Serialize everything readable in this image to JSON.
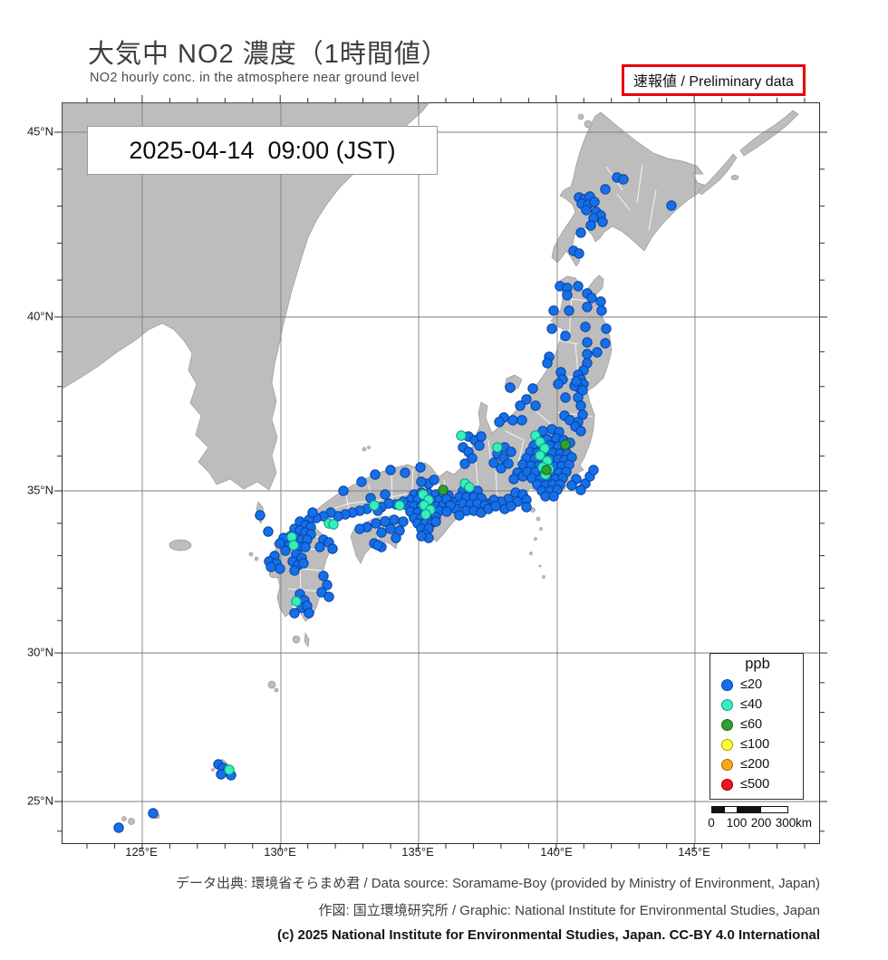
{
  "header": {
    "title": "大気中 NO2 濃度（1時間値）",
    "subtitle": "NO2 hourly conc. in the atmosphere near ground level",
    "preliminary_badge": "速報値 / Preliminary data",
    "timestamp": "2025-04-14  09:00 (JST)"
  },
  "axes": {
    "lat_labels": [
      "45°N",
      "40°N",
      "35°N",
      "30°N",
      "25°N"
    ],
    "lon_labels": [
      "125°E",
      "130°E",
      "135°E",
      "140°E",
      "145°E"
    ]
  },
  "legend": {
    "title": "ppb"
  },
  "scalebar": {
    "labels": [
      "0",
      "100",
      "200",
      "300"
    ],
    "unit": "km"
  },
  "footer": {
    "line1": "データ出典: 環境省そらまめ君 / Data source: Soramame-Boy (provided by Ministry of Environment, Japan)",
    "line2": "作図: 国立環境研究所 / Graphic: National Institute for Environmental Studies, Japan",
    "line3": "(c) 2025 National Institute for Environmental Studies, Japan. CC-BY 4.0 International"
  },
  "map": {
    "sea_color": "#ffffff",
    "land_color": "#bdbdbd",
    "grid_color": "#7d7d7d",
    "levels": [
      {
        "label": "≤20",
        "fill": "#1470e8",
        "stroke": "#0a3fa0"
      },
      {
        "label": "≤40",
        "fill": "#35efbe",
        "stroke": "#0d9a78"
      },
      {
        "label": "≤60",
        "fill": "#2fa12f",
        "stroke": "#1c641c"
      },
      {
        "label": "≤100",
        "fill": "#ffff2e",
        "stroke": "#a0a000"
      },
      {
        "label": "≤200",
        "fill": "#ffa519",
        "stroke": "#a86a00"
      },
      {
        "label": "≤500",
        "fill": "#f5141e",
        "stroke": "#8f0000"
      }
    ],
    "stations": {
      "le20": [
        [
          612,
          82
        ],
        [
          619,
          84
        ],
        [
          599,
          95
        ],
        [
          570,
          104
        ],
        [
          576,
          106
        ],
        [
          582,
          103
        ],
        [
          573,
          111
        ],
        [
          580,
          112
        ],
        [
          587,
          109
        ],
        [
          578,
          118
        ],
        [
          589,
          120
        ],
        [
          594,
          124
        ],
        [
          586,
          127
        ],
        [
          596,
          131
        ],
        [
          583,
          135
        ],
        [
          572,
          143
        ],
        [
          564,
          163
        ],
        [
          570,
          166
        ],
        [
          672,
          113
        ],
        [
          549,
          202
        ],
        [
          557,
          204
        ],
        [
          569,
          202
        ],
        [
          557,
          212
        ],
        [
          579,
          210
        ],
        [
          584,
          215
        ],
        [
          594,
          219
        ],
        [
          542,
          229
        ],
        [
          559,
          229
        ],
        [
          579,
          225
        ],
        [
          595,
          229
        ],
        [
          540,
          249
        ],
        [
          555,
          257
        ],
        [
          577,
          247
        ],
        [
          579,
          264
        ],
        [
          600,
          249
        ],
        [
          599,
          265
        ],
        [
          590,
          275
        ],
        [
          579,
          277
        ],
        [
          537,
          280
        ],
        [
          535,
          287
        ],
        [
          550,
          297
        ],
        [
          579,
          287
        ],
        [
          575,
          295
        ],
        [
          569,
          300
        ],
        [
          572,
          305
        ],
        [
          575,
          310
        ],
        [
          570,
          314
        ],
        [
          565,
          312
        ],
        [
          574,
          317
        ],
        [
          567,
          307
        ],
        [
          552,
          305
        ],
        [
          547,
          310
        ],
        [
          555,
          325
        ],
        [
          569,
          325
        ],
        [
          572,
          334
        ],
        [
          554,
          345
        ],
        [
          560,
          350
        ],
        [
          574,
          344
        ],
        [
          569,
          352
        ],
        [
          494,
          314
        ],
        [
          519,
          315
        ],
        [
          512,
          327
        ],
        [
          505,
          334
        ],
        [
          487,
          347
        ],
        [
          497,
          350
        ],
        [
          507,
          350
        ],
        [
          482,
          352
        ],
        [
          522,
          334
        ],
        [
          448,
          368
        ],
        [
          455,
          372
        ],
        [
          462,
          368
        ],
        [
          442,
          380
        ],
        [
          448,
          385
        ],
        [
          452,
          392
        ],
        [
          444,
          398
        ],
        [
          460,
          378
        ],
        [
          480,
          387
        ],
        [
          487,
          392
        ],
        [
          476,
          397
        ],
        [
          484,
          403
        ],
        [
          492,
          398
        ],
        [
          488,
          380
        ],
        [
          495,
          385
        ],
        [
          502,
          408
        ],
        [
          508,
          412
        ],
        [
          498,
          415
        ],
        [
          530,
          362
        ],
        [
          540,
          360
        ],
        [
          548,
          363
        ],
        [
          525,
          370
        ],
        [
          535,
          371
        ],
        [
          545,
          370
        ],
        [
          553,
          372
        ],
        [
          520,
          378
        ],
        [
          529,
          379
        ],
        [
          538,
          378
        ],
        [
          547,
          379
        ],
        [
          555,
          379
        ],
        [
          560,
          375
        ],
        [
          516,
          385
        ],
        [
          524,
          386
        ],
        [
          533,
          386
        ],
        [
          541,
          386
        ],
        [
          549,
          387
        ],
        [
          557,
          387
        ],
        [
          512,
          392
        ],
        [
          521,
          393
        ],
        [
          530,
          393
        ],
        [
          538,
          393
        ],
        [
          547,
          393
        ],
        [
          554,
          394
        ],
        [
          562,
          391
        ],
        [
          508,
          399
        ],
        [
          517,
          400
        ],
        [
          526,
          400
        ],
        [
          534,
          400
        ],
        [
          543,
          401
        ],
        [
          551,
          401
        ],
        [
          559,
          399
        ],
        [
          513,
          407
        ],
        [
          522,
          407
        ],
        [
          531,
          408
        ],
        [
          539,
          408
        ],
        [
          548,
          408
        ],
        [
          556,
          407
        ],
        [
          518,
          414
        ],
        [
          527,
          415
        ],
        [
          536,
          415
        ],
        [
          544,
          415
        ],
        [
          552,
          414
        ],
        [
          524,
          421
        ],
        [
          533,
          422
        ],
        [
          541,
          421
        ],
        [
          549,
          421
        ],
        [
          529,
          428
        ],
        [
          538,
          428
        ],
        [
          546,
          427
        ],
        [
          533,
          434
        ],
        [
          542,
          434
        ],
        [
          566,
          357
        ],
        [
          572,
          362
        ],
        [
          567,
          415
        ],
        [
          577,
          420
        ],
        [
          582,
          412
        ],
        [
          572,
          427
        ],
        [
          562,
          422
        ],
        [
          586,
          405
        ],
        [
          500,
          430
        ],
        [
          508,
          432
        ],
        [
          492,
          437
        ],
        [
          484,
          440
        ],
        [
          476,
          438
        ],
        [
          468,
          442
        ],
        [
          502,
          440
        ],
        [
          512,
          438
        ],
        [
          488,
          448
        ],
        [
          495,
          445
        ],
        [
          512,
          446
        ],
        [
          442,
          428
        ],
        [
          450,
          427
        ],
        [
          458,
          428
        ],
        [
          438,
          435
        ],
        [
          446,
          435
        ],
        [
          454,
          435
        ],
        [
          462,
          436
        ],
        [
          442,
          442
        ],
        [
          450,
          443
        ],
        [
          458,
          442
        ],
        [
          446,
          450
        ],
        [
          454,
          450
        ],
        [
          434,
          448
        ],
        [
          466,
          444
        ],
        [
          462,
          452
        ],
        [
          438,
          455
        ],
        [
          470,
          448
        ],
        [
          478,
          445
        ],
        [
          430,
          440
        ],
        [
          426,
          433
        ],
        [
          388,
          432
        ],
        [
          396,
          430
        ],
        [
          404,
          431
        ],
        [
          412,
          432
        ],
        [
          384,
          438
        ],
        [
          392,
          438
        ],
        [
          400,
          438
        ],
        [
          408,
          439
        ],
        [
          416,
          438
        ],
        [
          380,
          444
        ],
        [
          388,
          445
        ],
        [
          396,
          445
        ],
        [
          404,
          445
        ],
        [
          412,
          445
        ],
        [
          420,
          444
        ],
        [
          384,
          451
        ],
        [
          392,
          452
        ],
        [
          400,
          452
        ],
        [
          408,
          451
        ],
        [
          416,
          450
        ],
        [
          388,
          458
        ],
        [
          396,
          458
        ],
        [
          404,
          458
        ],
        [
          412,
          457
        ],
        [
          392,
          464
        ],
        [
          400,
          464
        ],
        [
          408,
          463
        ],
        [
          396,
          470
        ],
        [
          404,
          470
        ],
        [
          400,
          476
        ],
        [
          420,
          430
        ],
        [
          424,
          437
        ],
        [
          428,
          444
        ],
        [
          424,
          451
        ],
        [
          404,
          420
        ],
        [
          410,
          416
        ],
        [
          396,
          418
        ],
        [
          412,
          462
        ],
        [
          404,
          480
        ],
        [
          396,
          478
        ],
        [
          376,
          440
        ],
        [
          368,
          443
        ],
        [
          360,
          442
        ],
        [
          352,
          446
        ],
        [
          336,
          448
        ],
        [
          328,
          450
        ],
        [
          320,
          452
        ],
        [
          312,
          454
        ],
        [
          304,
          456
        ],
        [
          296,
          452
        ],
        [
          288,
          456
        ],
        [
          280,
          458
        ],
        [
          356,
          432
        ],
        [
          340,
          436
        ],
        [
          348,
          450
        ],
        [
          362,
          405
        ],
        [
          345,
          410
        ],
        [
          330,
          418
        ],
        [
          378,
          408
        ],
        [
          310,
          428
        ],
        [
          395,
          402
        ],
        [
          272,
          460
        ],
        [
          276,
          452
        ],
        [
          268,
          466
        ],
        [
          376,
          462
        ],
        [
          366,
          460
        ],
        [
          356,
          462
        ],
        [
          346,
          464
        ],
        [
          336,
          468
        ],
        [
          328,
          470
        ],
        [
          372,
          472
        ],
        [
          362,
          470
        ],
        [
          352,
          474
        ],
        [
          344,
          486
        ],
        [
          352,
          490
        ],
        [
          368,
          480
        ],
        [
          348,
          488
        ],
        [
          262,
          462
        ],
        [
          268,
          466
        ],
        [
          274,
          468
        ],
        [
          256,
          470
        ],
        [
          262,
          472
        ],
        [
          268,
          474
        ],
        [
          274,
          476
        ],
        [
          252,
          478
        ],
        [
          258,
          480
        ],
        [
          264,
          482
        ],
        [
          270,
          482
        ],
        [
          250,
          486
        ],
        [
          256,
          488
        ],
        [
          262,
          490
        ],
        [
          268,
          490
        ],
        [
          246,
          494
        ],
        [
          244,
          480
        ],
        [
          240,
          486
        ],
        [
          288,
          482
        ],
        [
          294,
          485
        ],
        [
          298,
          492
        ],
        [
          284,
          490
        ],
        [
          234,
          500
        ],
        [
          228,
          506
        ],
        [
          236,
          508
        ],
        [
          230,
          512
        ],
        [
          240,
          514
        ],
        [
          258,
          498
        ],
        [
          264,
          502
        ],
        [
          254,
          506
        ],
        [
          260,
          510
        ],
        [
          266,
          508
        ],
        [
          256,
          516
        ],
        [
          288,
          522
        ],
        [
          292,
          532
        ],
        [
          286,
          540
        ],
        [
          294,
          545
        ],
        [
          262,
          542
        ],
        [
          267,
          549
        ],
        [
          264,
          557
        ],
        [
          270,
          555
        ],
        [
          256,
          563
        ],
        [
          272,
          563
        ],
        [
          218,
          455
        ],
        [
          227,
          473
        ],
        [
          172,
          730
        ],
        [
          177,
          734
        ],
        [
          182,
          738
        ],
        [
          175,
          741
        ],
        [
          186,
          742
        ],
        [
          100,
          784
        ],
        [
          62,
          800
        ]
      ],
      "le40": [
        [
          440,
          367
        ],
        [
          480,
          380
        ],
        [
          522,
          367
        ],
        [
          527,
          374
        ],
        [
          532,
          381
        ],
        [
          527,
          389
        ],
        [
          535,
          395
        ],
        [
          530,
          402
        ],
        [
          537,
          404
        ],
        [
          533,
          410
        ],
        [
          444,
          420
        ],
        [
          449,
          424
        ],
        [
          398,
          432
        ],
        [
          404,
          438
        ],
        [
          399,
          444
        ],
        [
          406,
          449
        ],
        [
          401,
          454
        ],
        [
          344,
          444
        ],
        [
          372,
          444
        ],
        [
          294,
          464
        ],
        [
          299,
          465
        ],
        [
          253,
          479
        ],
        [
          255,
          488
        ],
        [
          258,
          550
        ],
        [
          184,
          736
        ]
      ],
      "le60": [
        [
          555,
          377
        ],
        [
          534,
          405
        ],
        [
          420,
          427
        ]
      ]
    }
  }
}
